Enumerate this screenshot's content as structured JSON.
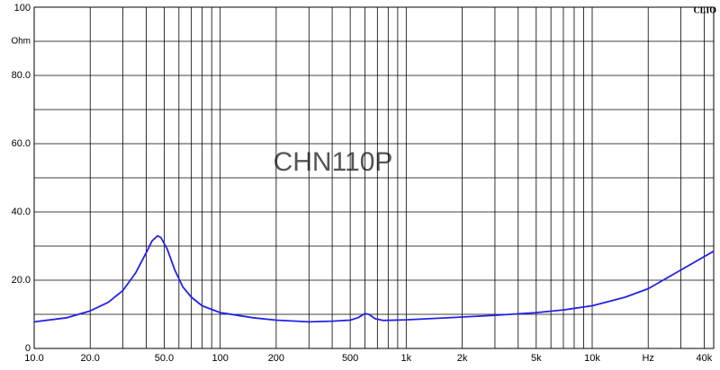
{
  "chart_data": {
    "type": "line",
    "title": "CHN110P",
    "brand": "CLIO",
    "y_unit_label": "Ohm",
    "xscale": "log",
    "grid": true,
    "xlim": [
      10,
      45000
    ],
    "ylim": [
      0,
      100
    ],
    "yticks": [
      {
        "value": 0,
        "label": "0"
      },
      {
        "value": 20,
        "label": "20.0"
      },
      {
        "value": 40,
        "label": "40.0"
      },
      {
        "value": 60,
        "label": "60.0"
      },
      {
        "value": 80,
        "label": "80.0"
      },
      100
    ],
    "ygrid_minor": [
      10,
      30,
      50,
      70,
      90
    ],
    "xticks": [
      {
        "value": 10,
        "label": "10.0"
      },
      {
        "value": 20,
        "label": "20.0"
      },
      {
        "value": 50,
        "label": "50.0"
      },
      100,
      200,
      500,
      {
        "value": 1000,
        "label": "1k"
      },
      {
        "value": 2000,
        "label": "2k"
      },
      {
        "value": 5000,
        "label": "5k"
      },
      {
        "value": 10000,
        "label": "10k"
      },
      {
        "value": 20000,
        "label": "Hz"
      },
      {
        "value": 40000,
        "label": "40k"
      }
    ],
    "xgrid_minor": [
      30,
      40,
      60,
      70,
      80,
      90,
      300,
      400,
      600,
      700,
      800,
      900,
      3000,
      4000,
      6000,
      7000,
      8000,
      9000,
      30000
    ],
    "x": [
      10,
      15,
      20,
      25,
      30,
      35,
      40,
      43,
      46,
      48,
      52,
      57,
      63,
      70,
      80,
      100,
      150,
      200,
      300,
      400,
      500,
      550,
      600,
      630,
      680,
      750,
      1000,
      2000,
      3000,
      5000,
      7000,
      10000,
      15000,
      20000,
      30000,
      45000
    ],
    "series": [
      {
        "color": "#2222e6",
        "values": [
          7.8,
          9,
          11,
          13.5,
          17,
          22,
          28,
          31.5,
          33,
          32.5,
          29,
          23,
          18,
          15,
          12.5,
          10.5,
          9,
          8.3,
          7.8,
          8,
          8.3,
          9,
          10.2,
          10,
          8.7,
          8.2,
          8.4,
          9.2,
          9.7,
          10.5,
          11.3,
          12.5,
          15,
          17.5,
          23,
          28.5
        ]
      }
    ]
  }
}
